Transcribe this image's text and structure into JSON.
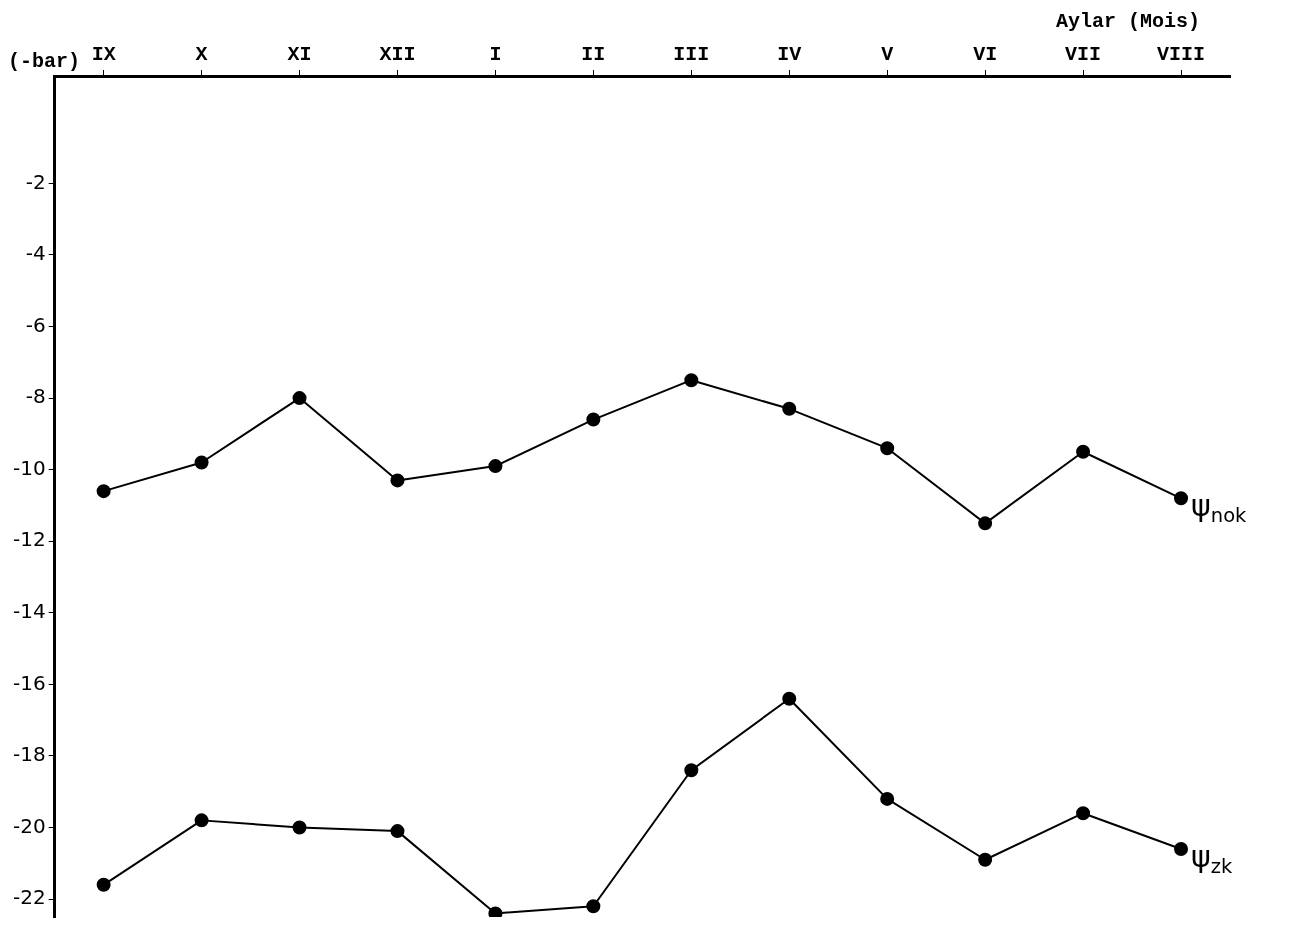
{
  "chart_data": {
    "type": "line",
    "xlabel": "Aylar (Mois)",
    "ylabel": "(-bar)",
    "categories": [
      "IX",
      "X",
      "XI",
      "XII",
      "I",
      "II",
      "III",
      "IV",
      "V",
      "VI",
      "VII",
      "VIII"
    ],
    "series": [
      {
        "name": "ψ$_{nok}$",
        "color": "#000000",
        "values": [
          -10.6,
          -9.8,
          -8.0,
          -10.3,
          -9.9,
          -8.6,
          -7.5,
          -8.3,
          -9.4,
          -11.5,
          -9.5,
          -10.8
        ]
      },
      {
        "name": "ψ$_{zk}$",
        "color": "#000000",
        "values": [
          -21.6,
          -19.8,
          -20.0,
          -20.1,
          -22.4,
          -22.2,
          -18.4,
          -16.4,
          -19.2,
          -20.9,
          -19.6,
          -20.6
        ]
      }
    ],
    "ylim": [
      -22.5,
      1
    ],
    "yticks": [
      -2,
      -4,
      -6,
      -8,
      -10,
      -12,
      -14,
      -16,
      -18,
      -20,
      -22
    ],
    "grid": false,
    "legend": false,
    "marker": "circle",
    "line_style": "solid"
  }
}
